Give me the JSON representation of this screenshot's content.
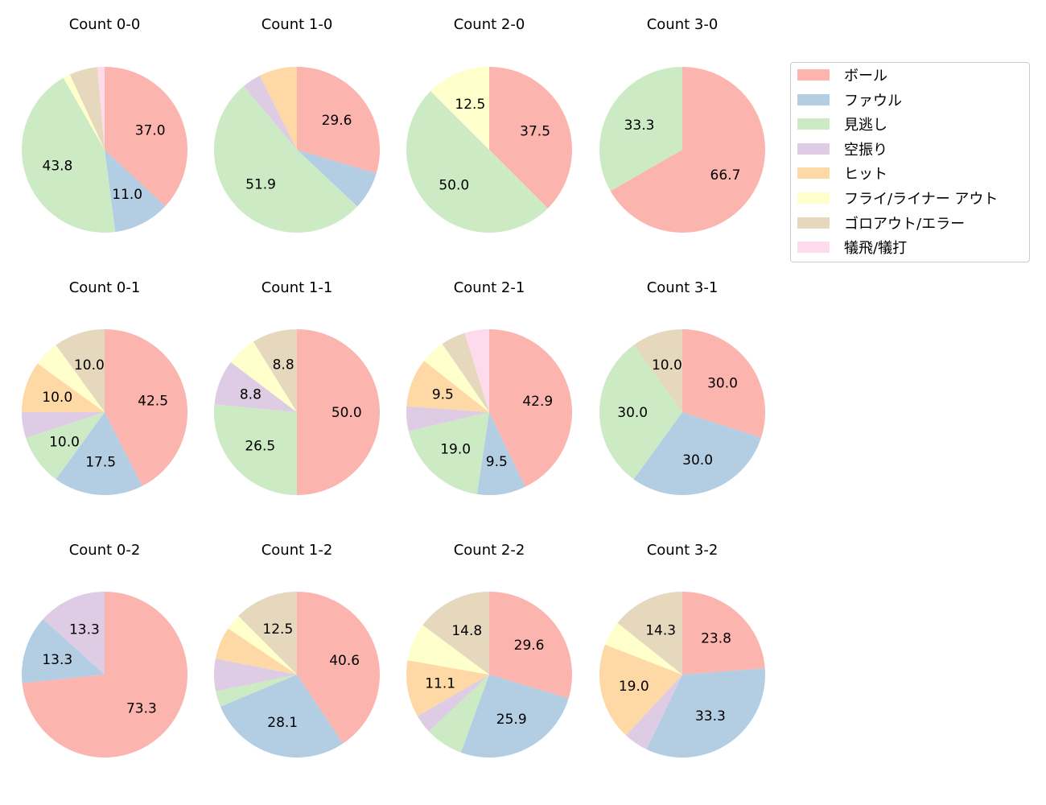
{
  "chart_data": [
    {
      "type": "pie",
      "title": "Count 0-0",
      "values": [
        37.0,
        11.0,
        43.8,
        0,
        0,
        1.4,
        5.5,
        1.4
      ]
    },
    {
      "type": "pie",
      "title": "Count 1-0",
      "values": [
        29.6,
        7.4,
        51.9,
        3.7,
        7.4,
        0,
        0,
        0
      ]
    },
    {
      "type": "pie",
      "title": "Count 2-0",
      "values": [
        37.5,
        0,
        50.0,
        0,
        0,
        12.5,
        0,
        0
      ]
    },
    {
      "type": "pie",
      "title": "Count 3-0",
      "values": [
        66.7,
        0,
        33.3,
        0,
        0,
        0,
        0,
        0
      ]
    },
    {
      "type": "pie",
      "title": "Count 0-1",
      "values": [
        42.5,
        17.5,
        10.0,
        5.0,
        10.0,
        5.0,
        10.0,
        0
      ]
    },
    {
      "type": "pie",
      "title": "Count 1-1",
      "values": [
        50.0,
        0,
        26.5,
        8.8,
        0,
        5.9,
        8.8,
        0
      ]
    },
    {
      "type": "pie",
      "title": "Count 2-1",
      "values": [
        42.9,
        9.5,
        19.0,
        4.8,
        9.5,
        4.8,
        4.8,
        4.8
      ]
    },
    {
      "type": "pie",
      "title": "Count 3-1",
      "values": [
        30.0,
        30.0,
        30.0,
        0,
        0,
        0,
        10.0,
        0
      ]
    },
    {
      "type": "pie",
      "title": "Count 0-2",
      "values": [
        73.3,
        13.3,
        0,
        13.3,
        0,
        0,
        0,
        0
      ]
    },
    {
      "type": "pie",
      "title": "Count 1-2",
      "values": [
        40.6,
        28.1,
        3.1,
        6.3,
        6.3,
        3.1,
        12.5,
        0
      ]
    },
    {
      "type": "pie",
      "title": "Count 2-2",
      "values": [
        29.6,
        25.9,
        7.4,
        3.7,
        11.1,
        7.4,
        14.8,
        0
      ]
    },
    {
      "type": "pie",
      "title": "Count 3-2",
      "values": [
        23.8,
        33.3,
        0,
        4.8,
        19.0,
        4.8,
        14.3,
        0
      ]
    }
  ],
  "legend": {
    "placement": "right",
    "labels": [
      "ボール",
      "ファウル",
      "見逃し",
      "空振り",
      "ヒット",
      "フライ/ライナー アウト",
      "ゴロアウト/エラー",
      "犠飛/犠打"
    ],
    "colors": [
      "#fbb4ae",
      "#b3cde3",
      "#ccebc5",
      "#decbe4",
      "#fed9a6",
      "#ffffcc",
      "#e5d8bd",
      "#fddaec"
    ]
  }
}
